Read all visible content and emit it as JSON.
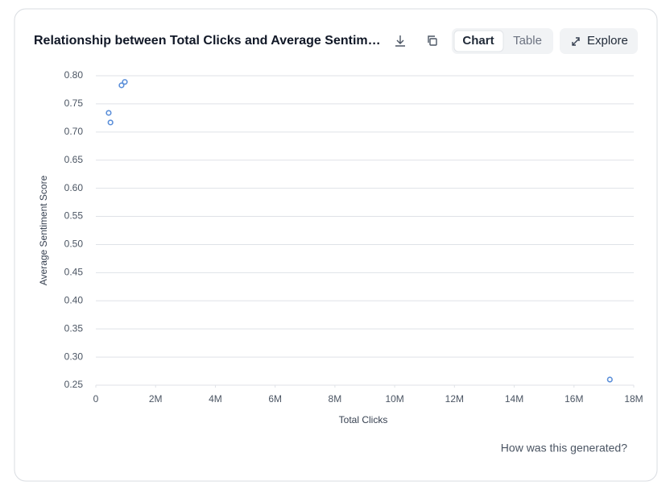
{
  "ui": {
    "title": "Relationship between Total Clicks and Average Sentim…",
    "tabs": [
      "Chart",
      "Table"
    ],
    "explore": "Explore",
    "footer": "How was this generated?"
  },
  "chart_data": {
    "type": "scatter",
    "x_label": "Total Clicks",
    "y_label": "Average Sentiment Score",
    "series": [
      {
        "color": "#5b8fd9",
        "x": [
          430000,
          490000,
          860000,
          970000,
          17200000
        ],
        "values": [
          0.734,
          0.717,
          0.783,
          0.789,
          0.26
        ]
      }
    ],
    "xlim": [
      0,
      18000000
    ],
    "xticks": [
      0,
      {
        "value": 2000000,
        "label": "2M"
      },
      {
        "value": 4000000,
        "label": "4M"
      },
      {
        "value": 6000000,
        "label": "6M"
      },
      {
        "value": 8000000,
        "label": "8M"
      },
      {
        "value": 10000000,
        "label": "10M"
      },
      {
        "value": 12000000,
        "label": "12M"
      },
      {
        "value": 14000000,
        "label": "14M"
      },
      {
        "value": 16000000,
        "label": "16M"
      },
      {
        "value": 18000000,
        "label": "18M"
      }
    ],
    "ylim": [
      0.25,
      0.8
    ],
    "yticks": [
      0.25,
      {
        "value": 0.3,
        "label": "0.30"
      },
      0.35,
      {
        "value": 0.4,
        "label": "0.40"
      },
      0.45,
      {
        "value": 0.5,
        "label": "0.50"
      },
      0.55,
      {
        "value": 0.6,
        "label": "0.60"
      },
      0.65,
      {
        "value": 0.7,
        "label": "0.70"
      },
      0.75,
      {
        "value": 0.8,
        "label": "0.80"
      }
    ],
    "grid": true
  }
}
